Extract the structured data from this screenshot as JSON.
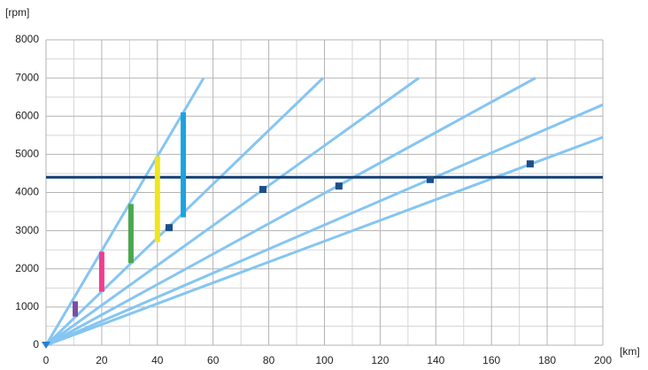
{
  "chart_data": {
    "type": "line",
    "y_label": "[rpm]",
    "x_label": "[km]",
    "xlim": [
      0,
      200
    ],
    "ylim": [
      0,
      8000
    ],
    "xticks": [
      0,
      20,
      40,
      60,
      80,
      100,
      120,
      140,
      160,
      180,
      200
    ],
    "yticks": [
      0,
      1000,
      2000,
      3000,
      4000,
      5000,
      6000,
      7000,
      8000
    ],
    "grid": true,
    "minor_grid": true,
    "series": [
      {
        "color": "#85c5f2",
        "x": [
          0,
          56.6
        ],
        "values": [
          0,
          7000
        ]
      },
      {
        "color": "#85c5f2",
        "x": [
          0,
          99.5
        ],
        "values": [
          0,
          7000
        ]
      },
      {
        "color": "#85c5f2",
        "x": [
          0,
          133.9
        ],
        "values": [
          0,
          7000
        ]
      },
      {
        "color": "#85c5f2",
        "x": [
          0,
          175.8
        ],
        "values": [
          0,
          7000
        ]
      },
      {
        "color": "#85c5f2",
        "x": [
          0,
          200
        ],
        "values": [
          0,
          6300
        ]
      },
      {
        "color": "#85c5f2",
        "x": [
          0,
          200
        ],
        "values": [
          0,
          5450
        ]
      }
    ],
    "shift_bars": [
      {
        "color": "#7a4fa6",
        "x": 10.5,
        "values": [
          750,
          1150
        ]
      },
      {
        "color": "#ee3f8f",
        "x": 20,
        "values": [
          1400,
          2450
        ]
      },
      {
        "color": "#4aa84e",
        "x": 30.5,
        "values": [
          2150,
          3700
        ]
      },
      {
        "color": "#f0e61e",
        "x": 40,
        "values": [
          2700,
          4950
        ]
      },
      {
        "color": "#1ba3e0",
        "x": 49.3,
        "values": [
          3350,
          6100
        ]
      }
    ],
    "points": {
      "color": "#1c4f8a",
      "x": [
        44.2,
        77.9,
        105.2,
        138,
        173.9
      ],
      "values": [
        3080,
        4080,
        4170,
        4340,
        4750
      ]
    },
    "hline": {
      "value": 4400,
      "color": "#133f73"
    },
    "origin_marker": {
      "color": "#2a7fd0",
      "x": 0,
      "value": 0
    }
  }
}
